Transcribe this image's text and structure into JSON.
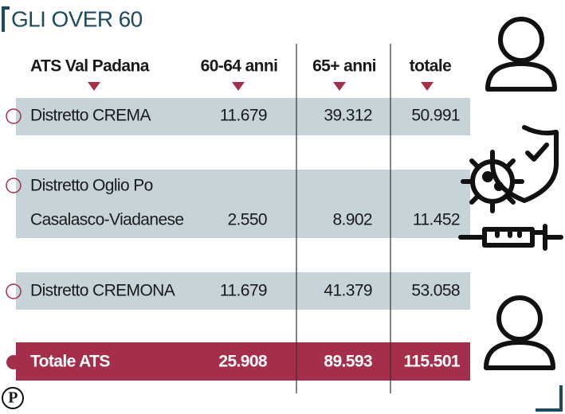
{
  "header": {
    "title": "GLI OVER 60"
  },
  "table": {
    "columns": [
      "ATS Val Padana",
      "60-64 anni",
      "65+ anni",
      "totale"
    ],
    "rows": [
      {
        "label": [
          "Distretto CREMA"
        ],
        "values": [
          "11.679",
          "39.312",
          "50.991"
        ]
      },
      {
        "label": [
          "Distretto Oglio Po",
          "Casalasco-Viadanese"
        ],
        "values": [
          "2.550",
          "8.902",
          "11.452"
        ]
      },
      {
        "label": [
          "Distretto CREMONA"
        ],
        "values": [
          "11.679",
          "41.379",
          "53.058"
        ]
      }
    ],
    "total": {
      "label": "Totale ATS",
      "values": [
        "25.908",
        "89.593",
        "115.501"
      ]
    }
  },
  "footer": {
    "logo": "P"
  }
}
